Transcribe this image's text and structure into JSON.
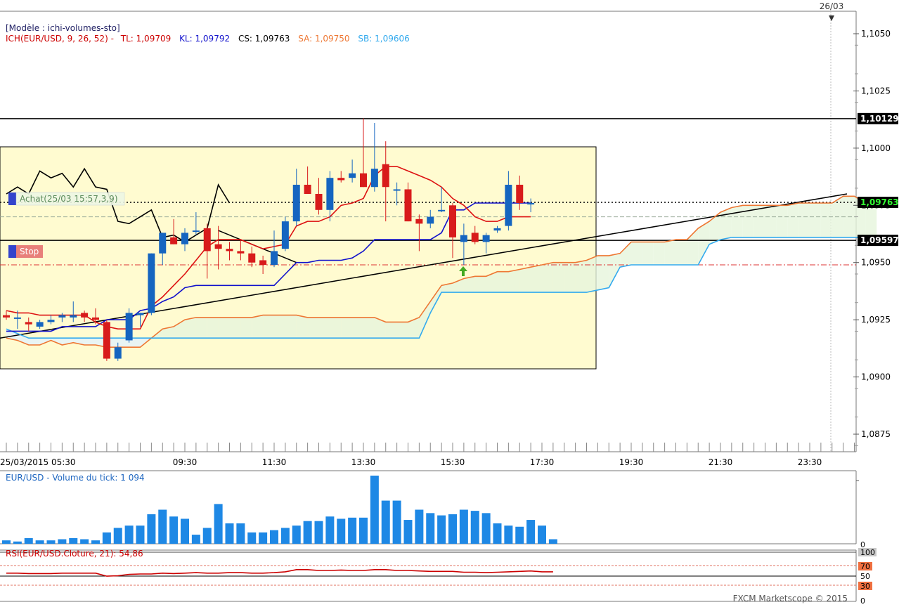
{
  "header": {
    "date_top": "26/03",
    "template": "[Modèle : ichi-volumes-sto]",
    "ich_prefix": "ICH(EUR/USD, 9, 26, 52) -",
    "tl": "TL: 1,09709",
    "kl": "KL: 1,09792",
    "cs": "CS: 1,09763",
    "sa": "SA: 1,09750",
    "sb": "SB: 1,09606"
  },
  "colors": {
    "up": "#1565c0",
    "down": "#d81b1b",
    "tenkan": "#dd1111",
    "kijun": "#1111cc",
    "chikou": "#000000",
    "span_a": "#ee7733",
    "span_b": "#33aaee",
    "volume": "#1e88e5",
    "rsi": "#cc0000",
    "zone": "#fffbd0"
  },
  "orders": {
    "buy_label": "Achat(25/03 15:57,3,9)",
    "stop_label": "Stop"
  },
  "watermark": "FXCM Marketscope © 2015",
  "chart_data": [
    {
      "type": "candlestick",
      "title": "",
      "symbol": "EUR/USD",
      "timeframe": "M5",
      "y_ticks": [
        1.105,
        1.1025,
        1.1,
        1.0975,
        1.095,
        1.0925,
        1.09,
        1.0875
      ],
      "y_tick_labels": [
        "1,1050",
        "1,1025",
        "1,1000",
        "1,0975",
        "1,0950",
        "1,0925",
        "1,0900",
        "1,0875"
      ],
      "ylim": [
        1.0868,
        1.1054
      ],
      "x_tick_labels": [
        "25/03/2015 05:30",
        "09:30",
        "11:30",
        "13:30",
        "15:30",
        "17:30",
        "19:30",
        "21:30",
        "23:30"
      ],
      "x_tick_index": [
        0,
        16,
        24,
        32,
        40,
        48,
        56,
        64,
        72
      ],
      "price_labels": [
        {
          "value": 1.10129,
          "text": "1,10129",
          "style": "resistance"
        },
        {
          "value": 1.09763,
          "text": "1,09763",
          "style": "last"
        },
        {
          "value": 1.09597,
          "text": "1,09597",
          "style": "support"
        }
      ],
      "candles": [
        {
          "o": 1.0927,
          "h": 1.0929,
          "l": 1.0925,
          "c": 1.0926
        },
        {
          "o": 1.0926,
          "h": 1.0929,
          "l": 1.0921,
          "c": 1.0926
        },
        {
          "o": 1.0924,
          "h": 1.0926,
          "l": 1.092,
          "c": 1.0923
        },
        {
          "o": 1.0922,
          "h": 1.0925,
          "l": 1.0921,
          "c": 1.0924
        },
        {
          "o": 1.0924,
          "h": 1.0927,
          "l": 1.0923,
          "c": 1.0925
        },
        {
          "o": 1.0926,
          "h": 1.0928,
          "l": 1.0924,
          "c": 1.0927
        },
        {
          "o": 1.0926,
          "h": 1.0933,
          "l": 1.0924,
          "c": 1.0927
        },
        {
          "o": 1.0928,
          "h": 1.0929,
          "l": 1.0924,
          "c": 1.0926
        },
        {
          "o": 1.0926,
          "h": 1.093,
          "l": 1.0923,
          "c": 1.0925
        },
        {
          "o": 1.0924,
          "h": 1.0925,
          "l": 1.0907,
          "c": 1.0908
        },
        {
          "o": 1.0908,
          "h": 1.0915,
          "l": 1.0907,
          "c": 1.0913
        },
        {
          "o": 1.0916,
          "h": 1.093,
          "l": 1.0915,
          "c": 1.0928
        },
        {
          "o": 1.0927,
          "h": 1.0928,
          "l": 1.0922,
          "c": 1.0928
        },
        {
          "o": 1.0928,
          "h": 1.0954,
          "l": 1.0927,
          "c": 1.0954
        },
        {
          "o": 1.0954,
          "h": 1.0963,
          "l": 1.0949,
          "c": 1.0963
        },
        {
          "o": 1.0961,
          "h": 1.0969,
          "l": 1.0958,
          "c": 1.0958
        },
        {
          "o": 1.0958,
          "h": 1.0965,
          "l": 1.0955,
          "c": 1.0963
        },
        {
          "o": 1.0964,
          "h": 1.0972,
          "l": 1.0962,
          "c": 1.0964
        },
        {
          "o": 1.0965,
          "h": 1.0967,
          "l": 1.0943,
          "c": 1.0955
        },
        {
          "o": 1.0958,
          "h": 1.0966,
          "l": 1.0947,
          "c": 1.0956
        },
        {
          "o": 1.0956,
          "h": 1.0959,
          "l": 1.0951,
          "c": 1.0955
        },
        {
          "o": 1.0955,
          "h": 1.096,
          "l": 1.0951,
          "c": 1.0954
        },
        {
          "o": 1.0954,
          "h": 1.0957,
          "l": 1.0948,
          "c": 1.095
        },
        {
          "o": 1.0951,
          "h": 1.0953,
          "l": 1.0945,
          "c": 1.0949
        },
        {
          "o": 1.0949,
          "h": 1.0964,
          "l": 1.0948,
          "c": 1.0955
        },
        {
          "o": 1.0956,
          "h": 1.097,
          "l": 1.0955,
          "c": 1.0968
        },
        {
          "o": 1.0968,
          "h": 1.0991,
          "l": 1.0966,
          "c": 1.0984
        },
        {
          "o": 1.0984,
          "h": 1.0992,
          "l": 1.098,
          "c": 1.098
        },
        {
          "o": 1.098,
          "h": 1.0987,
          "l": 1.0971,
          "c": 1.0973
        },
        {
          "o": 1.0973,
          "h": 1.099,
          "l": 1.0968,
          "c": 1.0987
        },
        {
          "o": 1.0987,
          "h": 1.099,
          "l": 1.0985,
          "c": 1.0986
        },
        {
          "o": 1.0987,
          "h": 1.0995,
          "l": 1.0985,
          "c": 1.0989
        },
        {
          "o": 1.0989,
          "h": 1.1013,
          "l": 1.0983,
          "c": 1.0983
        },
        {
          "o": 1.0983,
          "h": 1.1011,
          "l": 1.0981,
          "c": 1.0991
        },
        {
          "o": 1.0993,
          "h": 1.1003,
          "l": 1.0968,
          "c": 1.0983
        },
        {
          "o": 1.0982,
          "h": 1.0985,
          "l": 1.0975,
          "c": 1.0982
        },
        {
          "o": 1.0982,
          "h": 1.0985,
          "l": 1.0968,
          "c": 1.0968
        },
        {
          "o": 1.0969,
          "h": 1.0971,
          "l": 1.0955,
          "c": 1.0967
        },
        {
          "o": 1.0967,
          "h": 1.0973,
          "l": 1.0965,
          "c": 1.097
        },
        {
          "o": 1.0973,
          "h": 1.0983,
          "l": 1.0972,
          "c": 1.0973
        },
        {
          "o": 1.0975,
          "h": 1.0976,
          "l": 1.0952,
          "c": 1.0961
        },
        {
          "o": 1.0959,
          "h": 1.0967,
          "l": 1.0949,
          "c": 1.0962
        },
        {
          "o": 1.0963,
          "h": 1.0966,
          "l": 1.0958,
          "c": 1.0959
        },
        {
          "o": 1.0959,
          "h": 1.0963,
          "l": 1.0954,
          "c": 1.0962
        },
        {
          "o": 1.0964,
          "h": 1.0966,
          "l": 1.0963,
          "c": 1.0965
        },
        {
          "o": 1.0966,
          "h": 1.099,
          "l": 1.0964,
          "c": 1.0984
        },
        {
          "o": 1.0984,
          "h": 1.0988,
          "l": 1.0973,
          "c": 1.0976
        },
        {
          "o": 1.0976,
          "h": 1.0978,
          "l": 1.0972,
          "c": 1.0976
        }
      ],
      "tenkan": [
        1.0929,
        1.0928,
        1.0928,
        1.0927,
        1.0927,
        1.0927,
        1.0927,
        1.0927,
        1.0924,
        1.0922,
        1.0921,
        1.0921,
        1.0921,
        1.0931,
        1.0935,
        1.094,
        1.0945,
        1.0951,
        1.0957,
        1.096,
        1.096,
        1.096,
        1.0958,
        1.0956,
        1.0957,
        1.0958,
        1.0966,
        1.0968,
        1.0968,
        1.097,
        1.0975,
        1.0976,
        1.0978,
        1.0988,
        1.0992,
        1.0992,
        1.099,
        1.0988,
        1.0986,
        1.0983,
        1.0978,
        1.0975,
        1.097,
        1.0968,
        1.0968,
        1.097,
        1.097,
        1.097
      ],
      "kijun": [
        1.092,
        1.092,
        1.092,
        1.092,
        1.092,
        1.0922,
        1.0922,
        1.0922,
        1.0922,
        1.0925,
        1.0925,
        1.0925,
        1.0929,
        1.093,
        1.0933,
        1.0935,
        1.0939,
        1.094,
        1.094,
        1.094,
        1.094,
        1.094,
        1.094,
        1.094,
        1.094,
        1.0945,
        1.095,
        1.095,
        1.0951,
        1.0951,
        1.0951,
        1.0952,
        1.0955,
        1.096,
        1.096,
        1.096,
        1.096,
        1.096,
        1.096,
        1.0963,
        1.0973,
        1.0973,
        1.0976,
        1.0976,
        1.0976,
        1.0976,
        1.0976,
        1.0976
      ],
      "chikou": [
        1.098,
        1.0983,
        1.098,
        1.099,
        1.0987,
        1.0989,
        1.0983,
        1.0991,
        1.0983,
        1.0982,
        1.0968,
        1.0967,
        1.097,
        1.0973,
        1.0961,
        1.0962,
        1.0959,
        1.0962,
        1.0965,
        1.0984,
        1.0976
      ],
      "span_a": [
        1.0917,
        1.0916,
        1.0914,
        1.0914,
        1.0916,
        1.0914,
        1.0915,
        1.0914,
        1.0914,
        1.0913,
        1.0913,
        1.0913,
        1.0913,
        1.0917,
        1.0921,
        1.0922,
        1.0925,
        1.0926,
        1.0926,
        1.0926,
        1.0926,
        1.0926,
        1.0926,
        1.0927,
        1.0927,
        1.0927,
        1.0927,
        1.0926,
        1.0926,
        1.0926,
        1.0926,
        1.0926,
        1.0926,
        1.0926,
        1.0924,
        1.0924,
        1.0924,
        1.0926,
        1.0933,
        1.094,
        1.0941,
        1.0943,
        1.0944,
        1.0944,
        1.0946,
        1.0946,
        1.0947,
        1.0948,
        1.0949,
        1.095,
        1.095,
        1.095,
        1.0951,
        1.0953,
        1.0953,
        1.0954,
        1.0959,
        1.0959,
        1.0959,
        1.0959,
        1.096,
        1.096,
        1.0965,
        1.0968,
        1.0972,
        1.0974,
        1.0975,
        1.0975,
        1.0975,
        1.0975,
        1.0975,
        1.0976,
        1.0976,
        1.0976,
        1.0976,
        1.0979,
        1.0979,
        1.0976,
        1.0976
      ],
      "span_b": [
        1.0921,
        1.0919,
        1.0917,
        1.0917,
        1.0917,
        1.0917,
        1.0917,
        1.0917,
        1.0917,
        1.0917,
        1.0917,
        1.0917,
        1.0917,
        1.0917,
        1.0917,
        1.0917,
        1.0917,
        1.0917,
        1.0917,
        1.0917,
        1.0917,
        1.0917,
        1.0917,
        1.0917,
        1.0917,
        1.0917,
        1.0917,
        1.0917,
        1.0917,
        1.0917,
        1.0917,
        1.0917,
        1.0917,
        1.0917,
        1.0917,
        1.0917,
        1.0917,
        1.0917,
        1.0928,
        1.0937,
        1.0937,
        1.0937,
        1.0937,
        1.0937,
        1.0937,
        1.0937,
        1.0937,
        1.0937,
        1.0937,
        1.0937,
        1.0937,
        1.0937,
        1.0937,
        1.0938,
        1.0939,
        1.0948,
        1.0949,
        1.0949,
        1.0949,
        1.0949,
        1.0949,
        1.0949,
        1.0949,
        1.0958,
        1.096,
        1.0961,
        1.0961,
        1.0961,
        1.0961,
        1.0961,
        1.0961,
        1.0961,
        1.0961,
        1.0961,
        1.0961,
        1.0961,
        1.0961,
        1.0961,
        1.0961
      ]
    },
    {
      "type": "bar",
      "title": "EUR/USD - Volume du tick: 1 094",
      "y_tick_labels": [
        "0"
      ],
      "values": [
        3,
        2,
        5,
        3,
        3,
        4,
        5,
        4,
        3,
        10,
        14,
        16,
        16,
        26,
        30,
        24,
        22,
        8,
        14,
        35,
        18,
        18,
        10,
        10,
        12,
        14,
        16,
        20,
        20,
        24,
        22,
        23,
        23,
        60,
        38,
        38,
        21,
        30,
        27,
        25,
        26,
        30,
        29,
        27,
        18,
        16,
        15,
        21,
        16,
        4
      ]
    },
    {
      "type": "line",
      "title": "RSI(EUR/USD.Cloture, 21): 54,86",
      "y_tick_labels": [
        "100",
        "70",
        "50",
        "30",
        "0"
      ],
      "ylim": [
        0,
        100
      ],
      "values": [
        52,
        52,
        51,
        51,
        51,
        52,
        52,
        52,
        52,
        45,
        46,
        49,
        50,
        50,
        52,
        51,
        52,
        53,
        52,
        52,
        53,
        53,
        52,
        52,
        53,
        55,
        60,
        60,
        58,
        58,
        59,
        58,
        58,
        60,
        60,
        58,
        58,
        57,
        56,
        56,
        56,
        54,
        54,
        53,
        54,
        55,
        56,
        57,
        55,
        55
      ]
    }
  ]
}
